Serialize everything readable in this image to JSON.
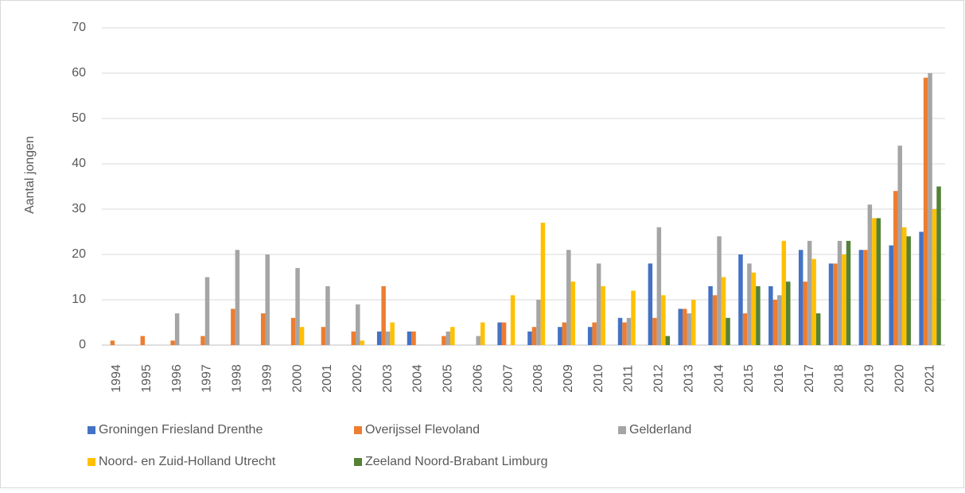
{
  "chart_data": {
    "type": "bar",
    "ylabel": "Aantal jongen",
    "categories": [
      "1994",
      "1995",
      "1996",
      "1997",
      "1998",
      "1999",
      "2000",
      "2001",
      "2002",
      "2003",
      "2004",
      "2005",
      "2006",
      "2007",
      "2008",
      "2009",
      "2010",
      "2011",
      "2012",
      "2013",
      "2014",
      "2015",
      "2016",
      "2017",
      "2018",
      "2019",
      "2020",
      "2021"
    ],
    "series": [
      {
        "name": "Groningen Friesland Drenthe",
        "color": "#4472c4",
        "values": [
          0,
          0,
          0,
          0,
          0,
          0,
          0,
          0,
          0,
          3,
          3,
          0,
          0,
          5,
          3,
          4,
          4,
          6,
          18,
          8,
          13,
          20,
          13,
          21,
          18,
          21,
          22,
          25
        ]
      },
      {
        "name": "Overijssel Flevoland",
        "color": "#ed7d31",
        "values": [
          1,
          2,
          1,
          2,
          8,
          7,
          6,
          4,
          3,
          13,
          3,
          2,
          0,
          5,
          4,
          5,
          5,
          5,
          6,
          8,
          11,
          7,
          10,
          14,
          18,
          21,
          34,
          59
        ]
      },
      {
        "name": "Gelderland",
        "color": "#a5a5a5",
        "values": [
          0,
          0,
          7,
          15,
          21,
          20,
          17,
          13,
          9,
          3,
          0,
          3,
          2,
          0,
          10,
          21,
          18,
          6,
          26,
          7,
          24,
          18,
          11,
          23,
          23,
          31,
          44,
          60
        ]
      },
      {
        "name": "Noord- en Zuid-Holland Utrecht",
        "color": "#ffc000",
        "values": [
          0,
          0,
          0,
          0,
          0,
          0,
          4,
          0,
          1,
          5,
          0,
          4,
          5,
          11,
          27,
          14,
          13,
          12,
          11,
          10,
          15,
          16,
          23,
          19,
          20,
          28,
          26,
          30
        ]
      },
      {
        "name": "Zeeland Noord-Brabant Limburg",
        "color": "#548235",
        "values": [
          0,
          0,
          0,
          0,
          0,
          0,
          0,
          0,
          0,
          0,
          0,
          0,
          0,
          0,
          0,
          0,
          0,
          0,
          2,
          0,
          6,
          13,
          14,
          7,
          23,
          28,
          24,
          35
        ]
      }
    ],
    "ylim": [
      0,
      70
    ],
    "yticks": [
      0,
      10,
      20,
      30,
      40,
      50,
      60,
      70
    ],
    "grid": true,
    "legend": "bottom"
  }
}
